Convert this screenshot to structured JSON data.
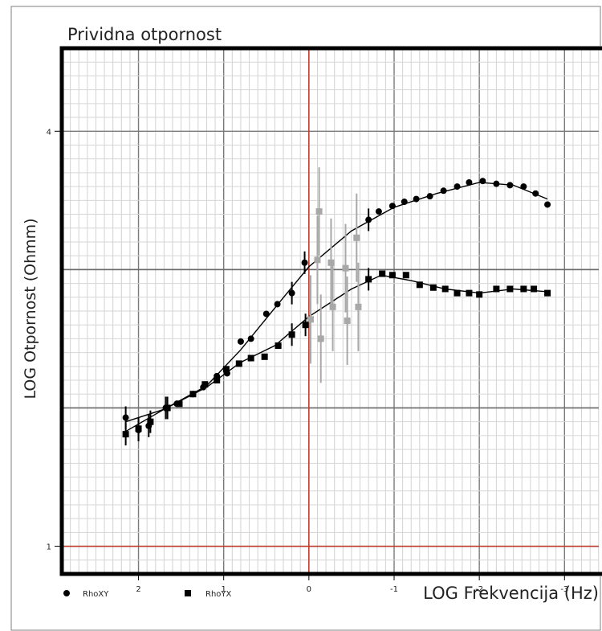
{
  "chart_data": {
    "type": "scatter",
    "title": "Prividna otpornost",
    "xlabel": "LOG Frekvencija (Hz)",
    "ylabel": "LOG Otpornost (Ohmm)",
    "x_reversed": true,
    "xlim": [
      2.9,
      -3.6
    ],
    "ylim": [
      0.8,
      4.6
    ],
    "x_ticks": [
      {
        "value": 2,
        "label": "2"
      },
      {
        "value": 1,
        "label": "1"
      },
      {
        "value": 0,
        "label": "0"
      },
      {
        "value": -1,
        "label": "-1"
      },
      {
        "value": -2,
        "label": "-2"
      },
      {
        "value": -3,
        "label": "-3"
      }
    ],
    "y_ticks": [
      {
        "value": 1,
        "label": "1"
      },
      {
        "value": 4,
        "label": "4"
      }
    ],
    "reference_lines": {
      "x": 0,
      "y": 1,
      "color": "#c0392b"
    },
    "grid": true,
    "legend_position": "bottom-left",
    "series": [
      {
        "name": "RhoXY",
        "marker": "circle",
        "color": "#000000",
        "points": [
          {
            "x": 2.15,
            "y": 1.93
          },
          {
            "x": 2.0,
            "y": 1.84
          },
          {
            "x": 1.88,
            "y": 1.87
          },
          {
            "x": 1.68,
            "y": 2.0
          },
          {
            "x": 1.55,
            "y": 2.03
          },
          {
            "x": 1.36,
            "y": 2.1
          },
          {
            "x": 1.24,
            "y": 2.15
          },
          {
            "x": 1.08,
            "y": 2.23
          },
          {
            "x": 0.96,
            "y": 2.25
          },
          {
            "x": 0.8,
            "y": 2.48
          },
          {
            "x": 0.68,
            "y": 2.5
          },
          {
            "x": 0.5,
            "y": 2.68
          },
          {
            "x": 0.37,
            "y": 2.75
          },
          {
            "x": 0.2,
            "y": 2.83
          },
          {
            "x": 0.05,
            "y": 3.05
          },
          {
            "x": -0.7,
            "y": 3.36
          },
          {
            "x": -0.82,
            "y": 3.42
          },
          {
            "x": -0.98,
            "y": 3.46
          },
          {
            "x": -1.12,
            "y": 3.49
          },
          {
            "x": -1.26,
            "y": 3.51
          },
          {
            "x": -1.42,
            "y": 3.53
          },
          {
            "x": -1.58,
            "y": 3.57
          },
          {
            "x": -1.74,
            "y": 3.6
          },
          {
            "x": -1.88,
            "y": 3.63
          },
          {
            "x": -2.04,
            "y": 3.64
          },
          {
            "x": -2.2,
            "y": 3.62
          },
          {
            "x": -2.36,
            "y": 3.61
          },
          {
            "x": -2.52,
            "y": 3.6
          },
          {
            "x": -2.66,
            "y": 3.55
          },
          {
            "x": -2.8,
            "y": 3.47
          }
        ],
        "fit": [
          {
            "x": 2.15,
            "y": 1.9
          },
          {
            "x": 1.7,
            "y": 1.99
          },
          {
            "x": 1.2,
            "y": 2.16
          },
          {
            "x": 0.8,
            "y": 2.42
          },
          {
            "x": 0.35,
            "y": 2.76
          },
          {
            "x": 0.0,
            "y": 3.02
          },
          {
            "x": -0.5,
            "y": 3.28
          },
          {
            "x": -1.0,
            "y": 3.45
          },
          {
            "x": -1.5,
            "y": 3.55
          },
          {
            "x": -2.0,
            "y": 3.63
          },
          {
            "x": -2.4,
            "y": 3.61
          },
          {
            "x": -2.8,
            "y": 3.51
          }
        ]
      },
      {
        "name": "RhoYX",
        "marker": "square",
        "color": "#000000",
        "points": [
          {
            "x": 2.15,
            "y": 1.81
          },
          {
            "x": 2.0,
            "y": 1.85
          },
          {
            "x": 1.86,
            "y": 1.9
          },
          {
            "x": 1.66,
            "y": 2.0
          },
          {
            "x": 1.52,
            "y": 2.03
          },
          {
            "x": 1.36,
            "y": 2.1
          },
          {
            "x": 1.22,
            "y": 2.17
          },
          {
            "x": 1.08,
            "y": 2.2
          },
          {
            "x": 0.97,
            "y": 2.28
          },
          {
            "x": 0.82,
            "y": 2.32
          },
          {
            "x": 0.68,
            "y": 2.36
          },
          {
            "x": 0.52,
            "y": 2.37
          },
          {
            "x": 0.36,
            "y": 2.45
          },
          {
            "x": 0.2,
            "y": 2.53
          },
          {
            "x": 0.04,
            "y": 2.6
          },
          {
            "x": -0.7,
            "y": 2.93
          },
          {
            "x": -0.86,
            "y": 2.97
          },
          {
            "x": -0.98,
            "y": 2.96
          },
          {
            "x": -1.14,
            "y": 2.96
          },
          {
            "x": -1.3,
            "y": 2.89
          },
          {
            "x": -1.46,
            "y": 2.87
          },
          {
            "x": -1.6,
            "y": 2.86
          },
          {
            "x": -1.74,
            "y": 2.83
          },
          {
            "x": -1.88,
            "y": 2.83
          },
          {
            "x": -2.0,
            "y": 2.82
          },
          {
            "x": -2.2,
            "y": 2.86
          },
          {
            "x": -2.36,
            "y": 2.86
          },
          {
            "x": -2.52,
            "y": 2.86
          },
          {
            "x": -2.64,
            "y": 2.86
          },
          {
            "x": -2.8,
            "y": 2.83
          }
        ],
        "fit": [
          {
            "x": 2.15,
            "y": 1.83
          },
          {
            "x": 1.7,
            "y": 1.99
          },
          {
            "x": 1.2,
            "y": 2.15
          },
          {
            "x": 0.8,
            "y": 2.33
          },
          {
            "x": 0.4,
            "y": 2.45
          },
          {
            "x": 0.0,
            "y": 2.66
          },
          {
            "x": -0.5,
            "y": 2.86
          },
          {
            "x": -0.85,
            "y": 2.96
          },
          {
            "x": -1.2,
            "y": 2.92
          },
          {
            "x": -1.6,
            "y": 2.86
          },
          {
            "x": -2.0,
            "y": 2.83
          },
          {
            "x": -2.4,
            "y": 2.86
          },
          {
            "x": -2.8,
            "y": 2.84
          }
        ]
      }
    ],
    "rejected_points_color": "#a8a8a8",
    "rejected_points": [
      {
        "x": -0.1,
        "y": 3.07
      },
      {
        "x": -0.02,
        "y": 2.64
      },
      {
        "x": -0.12,
        "y": 3.42
      },
      {
        "x": -0.14,
        "y": 2.5
      },
      {
        "x": -0.26,
        "y": 3.05
      },
      {
        "x": -0.28,
        "y": 2.73
      },
      {
        "x": -0.43,
        "y": 3.01
      },
      {
        "x": -0.45,
        "y": 2.63
      },
      {
        "x": -0.56,
        "y": 3.23
      },
      {
        "x": -0.58,
        "y": 2.73
      }
    ]
  },
  "legend": {
    "items": [
      {
        "label": "RhoXY",
        "marker": "circle"
      },
      {
        "label": "RhoYX",
        "marker": "square"
      }
    ]
  }
}
